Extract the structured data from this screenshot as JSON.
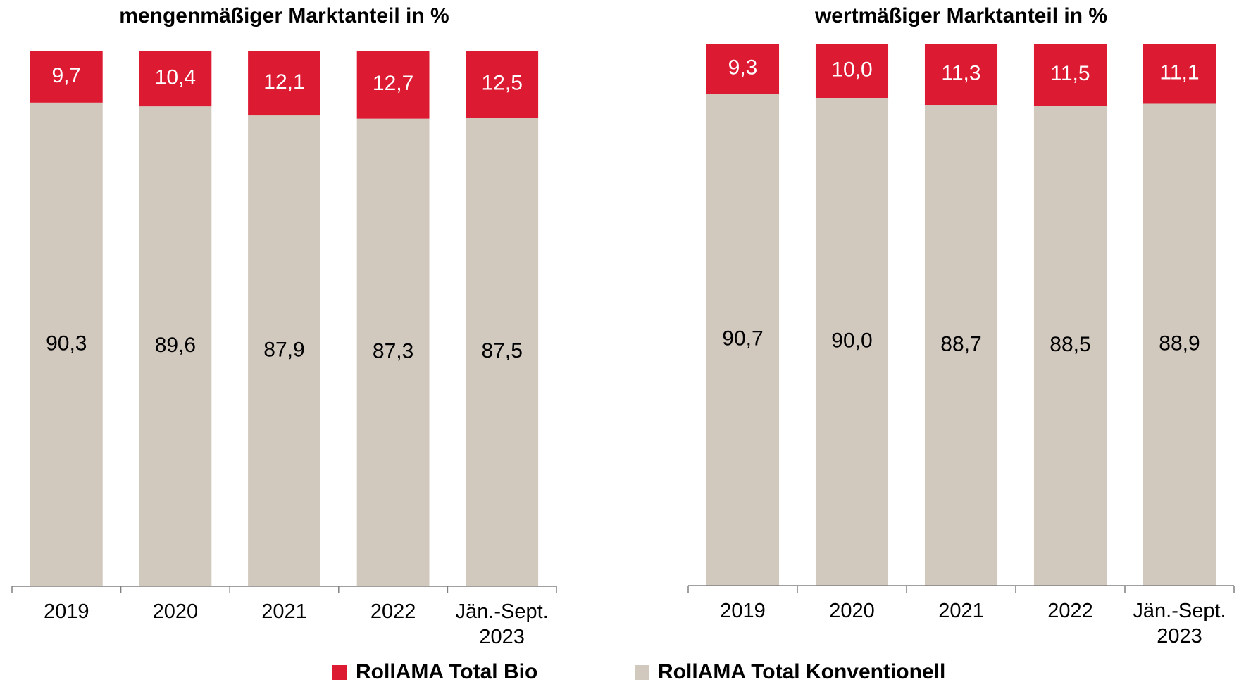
{
  "chart_data": [
    {
      "type": "stacked-bar",
      "title": "mengenmäßiger Marktanteil in %",
      "categories": [
        "2019",
        "2020",
        "2021",
        "2022",
        "Jän.-Sept. 2023"
      ],
      "ylim": [
        0,
        100
      ],
      "series": [
        {
          "name": "RollAMA Total Konventionell",
          "color": "#d1c8be",
          "values": [
            90.3,
            89.6,
            87.9,
            87.3,
            87.5
          ],
          "value_labels": [
            "90,3",
            "89,6",
            "87,9",
            "87,3",
            "87,5"
          ]
        },
        {
          "name": "RollAMA Total Bio",
          "color": "#dc1a32",
          "values": [
            9.7,
            10.4,
            12.1,
            12.7,
            12.5
          ],
          "value_labels": [
            "9,7",
            "10,4",
            "12,1",
            "12,7",
            "12,5"
          ]
        }
      ]
    },
    {
      "type": "stacked-bar",
      "title": "wertmäßiger Marktanteil in %",
      "categories": [
        "2019",
        "2020",
        "2021",
        "2022",
        "Jän.-Sept. 2023"
      ],
      "ylim": [
        0,
        100
      ],
      "series": [
        {
          "color": "#d1c8be",
          "values": [
            90.7,
            90.0,
            88.7,
            88.5,
            88.9
          ],
          "value_labels": [
            "90,7",
            "90,0",
            "88,7",
            "88,5",
            "88,9"
          ]
        },
        {
          "color": "#dc1a32",
          "values": [
            9.3,
            10.0,
            11.3,
            11.5,
            11.1
          ],
          "value_labels": [
            "9,3",
            "10,0",
            "11,3",
            "11,5",
            "11,1"
          ]
        }
      ]
    }
  ]
}
